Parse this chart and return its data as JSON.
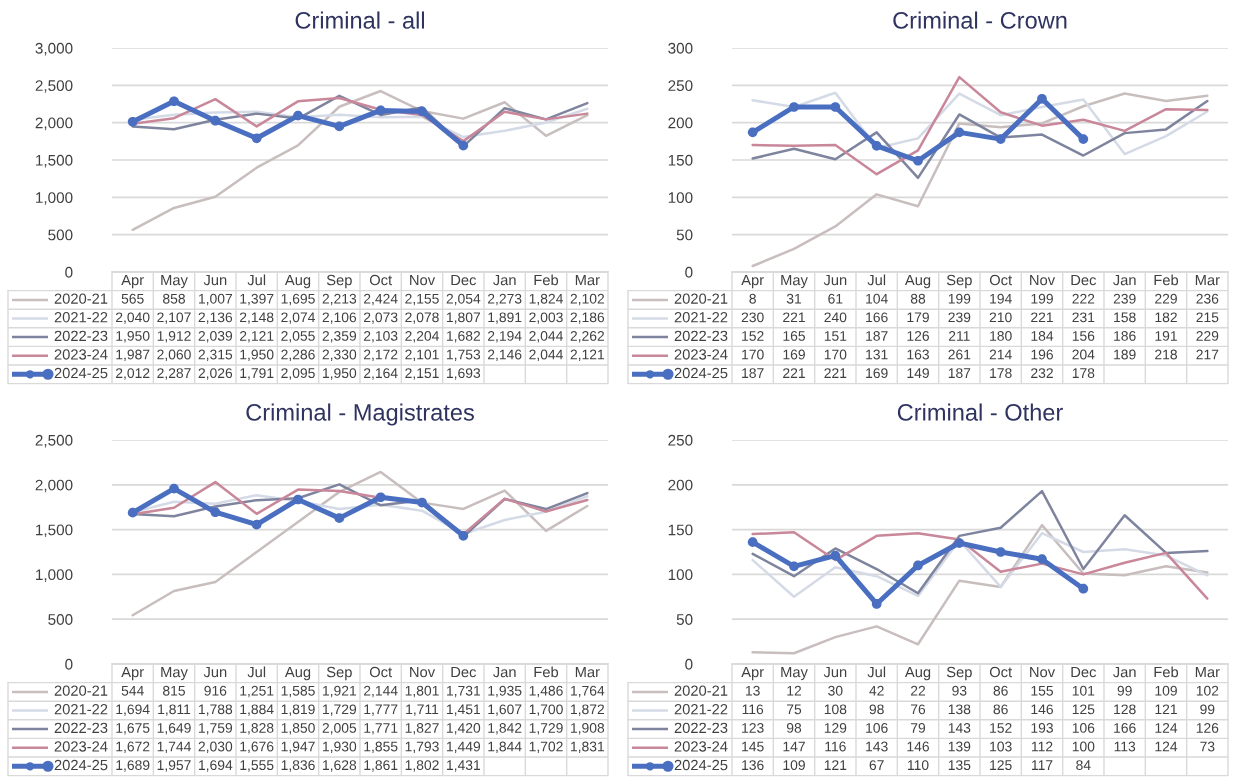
{
  "chart_data": [
    {
      "type": "line",
      "title": "Criminal - all",
      "categories": [
        "Apr",
        "May",
        "Jun",
        "Jul",
        "Aug",
        "Sep",
        "Oct",
        "Nov",
        "Dec",
        "Jan",
        "Feb",
        "Mar"
      ],
      "ylim": [
        0,
        3000
      ],
      "yticks": [
        0,
        {
          "value": 500,
          "label": "500"
        },
        {
          "value": 1000,
          "label": "1,000"
        },
        {
          "value": 1500,
          "label": "1,500"
        },
        {
          "value": 2000,
          "label": "2,000"
        },
        {
          "value": 2500,
          "label": "2,500"
        },
        {
          "value": 3000,
          "label": "3,000"
        }
      ],
      "grid": "y",
      "legend": "bottom",
      "series": [
        {
          "name": "2020-21",
          "color": "#c8bebe",
          "values": [
            565,
            858,
            1007,
            1397,
            1695,
            2213,
            2424,
            2155,
            2054,
            2273,
            1824,
            2102
          ],
          "value_labels": [
            "565",
            "858",
            "1,007",
            "1,397",
            "1,695",
            "2,213",
            "2,424",
            "2,155",
            "2,054",
            "2,273",
            "1,824",
            "2,102"
          ]
        },
        {
          "name": "2021-22",
          "color": "#d4dae6",
          "values": [
            2040,
            2107,
            2136,
            2148,
            2074,
            2106,
            2073,
            2078,
            1807,
            1891,
            2003,
            2186
          ],
          "value_labels": [
            "2,040",
            "2,107",
            "2,136",
            "2,148",
            "2,074",
            "2,106",
            "2,073",
            "2,078",
            "1,807",
            "1,891",
            "2,003",
            "2,186"
          ]
        },
        {
          "name": "2022-23",
          "color": "#7f849e",
          "values": [
            1950,
            1912,
            2039,
            2121,
            2055,
            2359,
            2103,
            2204,
            1682,
            2194,
            2044,
            2262
          ],
          "value_labels": [
            "1,950",
            "1,912",
            "2,039",
            "2,121",
            "2,055",
            "2,359",
            "2,103",
            "2,204",
            "1,682",
            "2,194",
            "2,044",
            "2,262"
          ]
        },
        {
          "name": "2023-24",
          "color": "#c9879a",
          "values": [
            1987,
            2060,
            2315,
            1950,
            2286,
            2330,
            2172,
            2101,
            1753,
            2146,
            2044,
            2121
          ],
          "value_labels": [
            "1,987",
            "2,060",
            "2,315",
            "1,950",
            "2,286",
            "2,330",
            "2,172",
            "2,101",
            "1,753",
            "2,146",
            "2,044",
            "2,121"
          ]
        },
        {
          "name": "2024-25",
          "color": "#4a6fc1",
          "marker": "circle",
          "values": [
            2012,
            2287,
            2026,
            1791,
            2095,
            1950,
            2164,
            2151,
            1693,
            null,
            null,
            null
          ],
          "value_labels": [
            "2,012",
            "2,287",
            "2,026",
            "1,791",
            "2,095",
            "1,950",
            "2,164",
            "2,151",
            "1,693",
            null,
            null,
            null
          ]
        }
      ]
    },
    {
      "type": "line",
      "title": "Criminal - Crown",
      "categories": [
        "Apr",
        "May",
        "Jun",
        "Jul",
        "Aug",
        "Sep",
        "Oct",
        "Nov",
        "Dec",
        "Jan",
        "Feb",
        "Mar"
      ],
      "ylim": [
        0,
        300
      ],
      "yticks": [
        0,
        50,
        100,
        150,
        200,
        250,
        300
      ],
      "grid": "y",
      "legend": "bottom",
      "data_labels": true,
      "series": [
        {
          "name": "2020-21",
          "color": "#c8bebe",
          "values": [
            8,
            31,
            61,
            104,
            88,
            199,
            194,
            199,
            222,
            239,
            229,
            236
          ]
        },
        {
          "name": "2021-22",
          "color": "#d4dae6",
          "values": [
            230,
            221,
            240,
            166,
            179,
            239,
            210,
            221,
            231,
            158,
            182,
            215
          ]
        },
        {
          "name": "2022-23",
          "color": "#7f849e",
          "values": [
            152,
            165,
            151,
            187,
            126,
            211,
            180,
            184,
            156,
            186,
            191,
            229
          ]
        },
        {
          "name": "2023-24",
          "color": "#c9879a",
          "values": [
            170,
            169,
            170,
            131,
            163,
            261,
            214,
            196,
            204,
            189,
            218,
            217
          ]
        },
        {
          "name": "2024-25",
          "color": "#4a6fc1",
          "marker": "circle",
          "values": [
            187,
            221,
            221,
            169,
            149,
            187,
            178,
            232,
            178,
            null,
            null,
            null
          ]
        }
      ]
    },
    {
      "type": "line",
      "title": "Criminal - Magistrates",
      "categories": [
        "Apr",
        "May",
        "Jun",
        "Jul",
        "Aug",
        "Sep",
        "Oct",
        "Nov",
        "Dec",
        "Jan",
        "Feb",
        "Mar"
      ],
      "ylim": [
        0,
        2500
      ],
      "yticks": [
        0,
        500,
        {
          "value": 1000,
          "label": "1,000"
        },
        {
          "value": 1500,
          "label": "1,500"
        },
        {
          "value": 2000,
          "label": "2,000"
        },
        {
          "value": 2500,
          "label": "2,500"
        }
      ],
      "grid": "y",
      "legend": "bottom",
      "series": [
        {
          "name": "2020-21",
          "color": "#c8bebe",
          "values": [
            544,
            815,
            916,
            1251,
            1585,
            1921,
            2144,
            1801,
            1731,
            1935,
            1486,
            1764
          ],
          "value_labels": [
            "544",
            "815",
            "916",
            "1,251",
            "1,585",
            "1,921",
            "2,144",
            "1,801",
            "1,731",
            "1,935",
            "1,486",
            "1,764"
          ]
        },
        {
          "name": "2021-22",
          "color": "#d4dae6",
          "values": [
            1694,
            1811,
            1788,
            1884,
            1819,
            1729,
            1777,
            1711,
            1451,
            1607,
            1700,
            1872
          ],
          "value_labels": [
            "1,694",
            "1,811",
            "1,788",
            "1,884",
            "1,819",
            "1,729",
            "1,777",
            "1,711",
            "1,451",
            "1,607",
            "1,700",
            "1,872"
          ]
        },
        {
          "name": "2022-23",
          "color": "#7f849e",
          "values": [
            1675,
            1649,
            1759,
            1828,
            1850,
            2005,
            1771,
            1827,
            1420,
            1842,
            1729,
            1908
          ],
          "value_labels": [
            "1,675",
            "1,649",
            "1,759",
            "1,828",
            "1,850",
            "2,005",
            "1,771",
            "1,827",
            "1,420",
            "1,842",
            "1,729",
            "1,908"
          ]
        },
        {
          "name": "2023-24",
          "color": "#c9879a",
          "values": [
            1672,
            1744,
            2030,
            1676,
            1947,
            1930,
            1855,
            1793,
            1449,
            1844,
            1702,
            1831
          ],
          "value_labels": [
            "1,672",
            "1,744",
            "2,030",
            "1,676",
            "1,947",
            "1,930",
            "1,855",
            "1,793",
            "1,449",
            "1,844",
            "1,702",
            "1,831"
          ]
        },
        {
          "name": "2024-25",
          "color": "#4a6fc1",
          "marker": "circle",
          "values": [
            1689,
            1957,
            1694,
            1555,
            1836,
            1628,
            1861,
            1802,
            1431,
            null,
            null,
            null
          ],
          "value_labels": [
            "1,689",
            "1,957",
            "1,694",
            "1,555",
            "1,836",
            "1,628",
            "1,861",
            "1,802",
            "1,431",
            null,
            null,
            null
          ]
        }
      ]
    },
    {
      "type": "line",
      "title": "Criminal - Other",
      "categories": [
        "Apr",
        "May",
        "Jun",
        "Jul",
        "Aug",
        "Sep",
        "Oct",
        "Nov",
        "Dec",
        "Jan",
        "Feb",
        "Mar"
      ],
      "ylim": [
        0,
        250
      ],
      "yticks": [
        0,
        50,
        100,
        150,
        200,
        250
      ],
      "grid": "y",
      "legend": "bottom",
      "data_labels": true,
      "series": [
        {
          "name": "2020-21",
          "color": "#c8bebe",
          "values": [
            13,
            12,
            30,
            42,
            22,
            93,
            86,
            155,
            101,
            99,
            109,
            102
          ]
        },
        {
          "name": "2021-22",
          "color": "#d4dae6",
          "values": [
            116,
            75,
            108,
            98,
            76,
            138,
            86,
            146,
            125,
            128,
            121,
            99
          ]
        },
        {
          "name": "2022-23",
          "color": "#7f849e",
          "values": [
            123,
            98,
            129,
            106,
            79,
            143,
            152,
            193,
            106,
            166,
            124,
            126
          ]
        },
        {
          "name": "2023-24",
          "color": "#c9879a",
          "values": [
            145,
            147,
            116,
            143,
            146,
            139,
            103,
            112,
            100,
            113,
            124,
            73
          ]
        },
        {
          "name": "2024-25",
          "color": "#4a6fc1",
          "marker": "circle",
          "values": [
            136,
            109,
            121,
            67,
            110,
            135,
            125,
            117,
            84,
            null,
            null,
            null
          ]
        }
      ]
    }
  ]
}
